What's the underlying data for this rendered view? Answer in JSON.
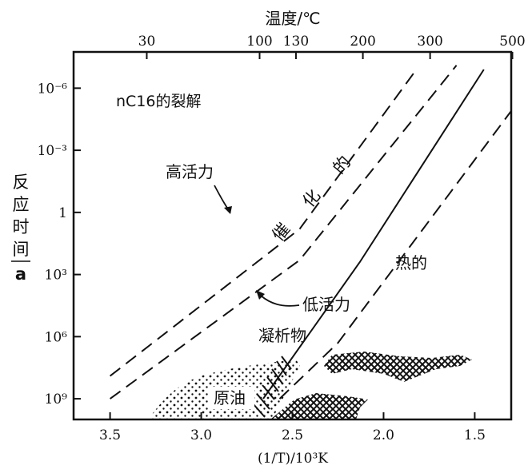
{
  "chart_data": {
    "type": "line",
    "title": "nC16的裂解",
    "xlabel": "(1/T)/10³K",
    "top_xlabel": "温度/℃",
    "ylabel": [
      "反",
      "应",
      "时",
      "间",
      "a"
    ],
    "x_reversed": true,
    "xlim": [
      3.7,
      1.3
    ],
    "ylim_log10_seconds_label": [
      "10⁻⁶",
      "10⁹"
    ],
    "x_ticks": [
      "3.5",
      "3.0",
      "2.5",
      "2.0",
      "1.5"
    ],
    "x_tick_values": [
      3.5,
      3.0,
      2.5,
      2.0,
      1.5
    ],
    "top_ticks": [
      "30",
      "100",
      "130",
      "200",
      "300",
      "500"
    ],
    "top_tick_values_celsius": [
      30,
      100,
      130,
      200,
      300,
      500
    ],
    "y_ticks": [
      "10⁻⁶",
      "10⁻³",
      "1",
      "10³",
      "10⁶",
      "10⁹"
    ],
    "y_tick_values": [
      -6,
      -3,
      0,
      3,
      6,
      9
    ],
    "series": [
      {
        "name": "高活力",
        "style": "dashed",
        "points": [
          [
            3.5,
            7.9
          ],
          [
            2.46,
            0.8
          ],
          [
            1.82,
            -6.9
          ]
        ]
      },
      {
        "name": "低活力",
        "style": "dashed",
        "points": [
          [
            3.5,
            9.0
          ],
          [
            2.46,
            2.3
          ],
          [
            1.6,
            -7.1
          ]
        ]
      },
      {
        "name": "催化的",
        "style": "solid",
        "points": [
          [
            2.66,
            9.0
          ],
          [
            2.13,
            2.4
          ],
          [
            1.45,
            -6.9
          ]
        ]
      },
      {
        "name": "热的",
        "style": "dashed",
        "points": [
          [
            2.57,
            9.0
          ],
          [
            2.25,
            6.3
          ],
          [
            1.3,
            -4.9
          ]
        ]
      }
    ],
    "region_labels": {
      "catalytic": [
        "催",
        "化",
        "的"
      ],
      "thermal": "热的",
      "high_activity": "高活力",
      "low_activity": "低活力",
      "condensate": "凝析物",
      "crude_oil": "原油"
    },
    "colors": {
      "line": "#111111",
      "background": "#ffffff"
    }
  }
}
